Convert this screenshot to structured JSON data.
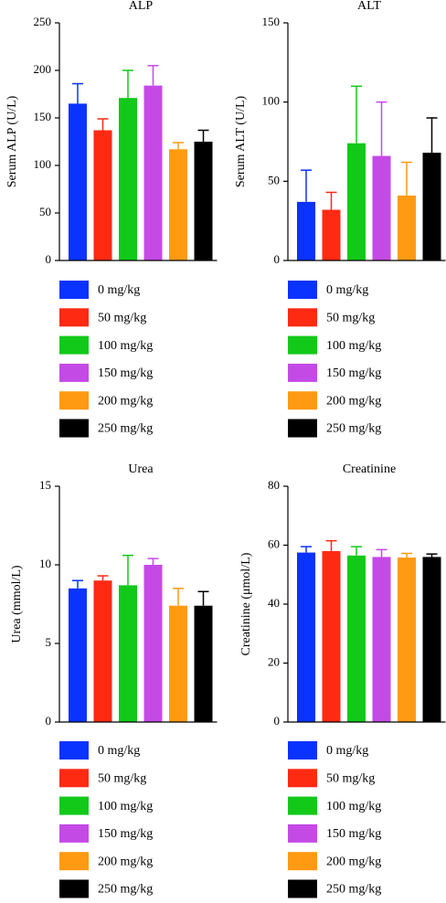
{
  "figure": {
    "colors": {
      "0 mg/kg": "#0a33ff",
      "50 mg/kg": "#ff2a12",
      "100 mg/kg": "#12c91a",
      "150 mg/kg": "#c44ae6",
      "200 mg/kg": "#ff9a12",
      "250 mg/kg": "#000000"
    }
  },
  "chart_data": [
    {
      "type": "bar",
      "title": "ALP",
      "ylabel": "Serum ALP (U/L)",
      "categories": [
        "0 mg/kg",
        "50 mg/kg",
        "100 mg/kg",
        "150 mg/kg",
        "200 mg/kg",
        "250 mg/kg"
      ],
      "values": [
        165,
        137,
        171,
        184,
        117,
        125
      ],
      "error_upper": [
        186,
        149,
        200,
        205,
        124,
        137
      ],
      "ylim": [
        0,
        250
      ],
      "yticks": [
        0,
        50,
        100,
        150,
        200,
        250
      ],
      "legend": [
        "0 mg/kg",
        "50 mg/kg",
        "100 mg/kg",
        "150 mg/kg",
        "200 mg/kg",
        "250 mg/kg"
      ],
      "legend_position": "below"
    },
    {
      "type": "bar",
      "title": "ALT",
      "ylabel": "Serum ALT (U/L)",
      "categories": [
        "0 mg/kg",
        "50 mg/kg",
        "100 mg/kg",
        "150 mg/kg",
        "200 mg/kg",
        "250 mg/kg"
      ],
      "values": [
        37,
        32,
        74,
        66,
        41,
        68
      ],
      "error_upper": [
        57,
        43,
        110,
        100,
        62,
        90
      ],
      "ylim": [
        0,
        150
      ],
      "yticks": [
        0,
        50,
        100,
        150
      ],
      "legend": [
        "0 mg/kg",
        "50 mg/kg",
        "100 mg/kg",
        "150 mg/kg",
        "200 mg/kg",
        "250 mg/kg"
      ],
      "legend_position": "below"
    },
    {
      "type": "bar",
      "title": "Urea",
      "ylabel": "Urea (mmol/L)",
      "categories": [
        "0 mg/kg",
        "50 mg/kg",
        "100 mg/kg",
        "150 mg/kg",
        "200 mg/kg",
        "250 mg/kg"
      ],
      "values": [
        8.5,
        9.0,
        8.7,
        10.0,
        7.4,
        7.4
      ],
      "error_upper": [
        9.0,
        9.3,
        10.6,
        10.4,
        8.5,
        8.3
      ],
      "ylim": [
        0,
        15
      ],
      "yticks": [
        0,
        5,
        10,
        15
      ],
      "legend": [
        "0 mg/kg",
        "50 mg/kg",
        "100 mg/kg",
        "150 mg/kg",
        "200 mg/kg",
        "250 mg/kg"
      ],
      "legend_position": "below"
    },
    {
      "type": "bar",
      "title": "Creatinine",
      "ylabel": "Creatinine (μmol/L)",
      "categories": [
        "0 mg/kg",
        "50 mg/kg",
        "100 mg/kg",
        "150 mg/kg",
        "200 mg/kg",
        "250 mg/kg"
      ],
      "values": [
        57.5,
        58,
        56.5,
        56,
        55.8,
        56
      ],
      "error_upper": [
        59.5,
        61.5,
        59.5,
        58.5,
        57.2,
        57
      ],
      "ylim": [
        0,
        80
      ],
      "yticks": [
        0,
        20,
        40,
        60,
        80
      ],
      "legend": [
        "0 mg/kg",
        "50 mg/kg",
        "100 mg/kg",
        "150 mg/kg",
        "200 mg/kg",
        "250 mg/kg"
      ],
      "legend_position": "below"
    }
  ]
}
